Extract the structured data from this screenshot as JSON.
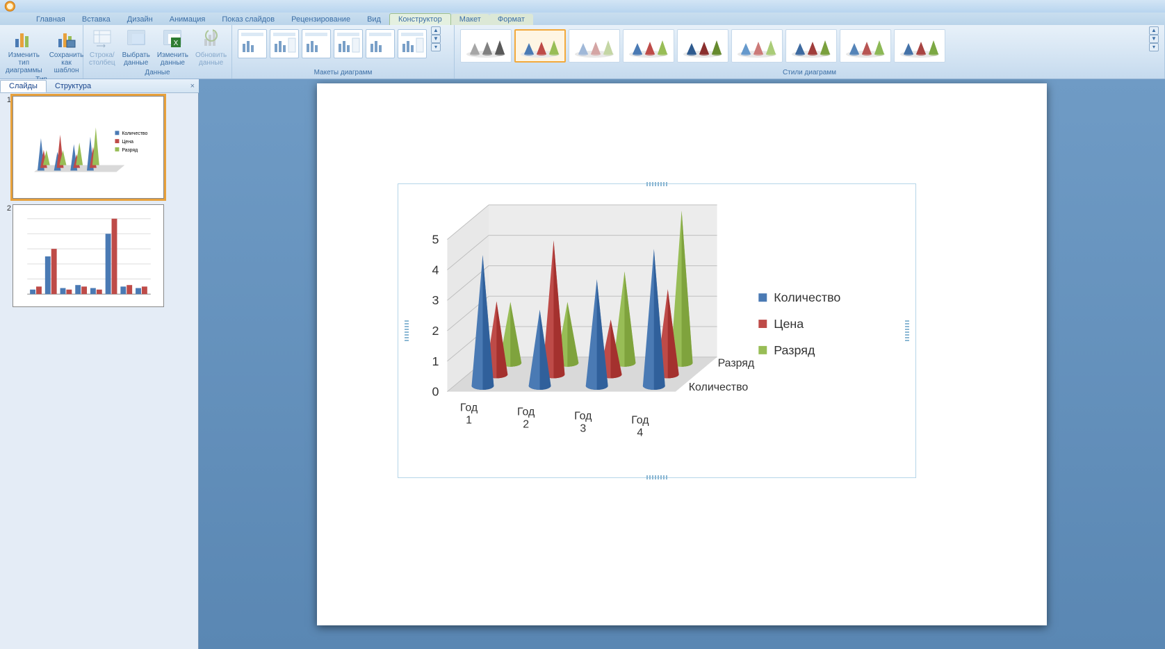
{
  "tabs": {
    "items": [
      "Главная",
      "Вставка",
      "Дизайн",
      "Анимация",
      "Показ слайдов",
      "Рецензирование",
      "Вид",
      "Конструктор",
      "Макет",
      "Формат"
    ],
    "active_index": 7,
    "contextual_start": 7
  },
  "ribbon": {
    "type_group": {
      "label": "Тип",
      "change_type_l1": "Изменить тип",
      "change_type_l2": "диаграммы",
      "save_tpl_l1": "Сохранить",
      "save_tpl_l2": "как шаблон"
    },
    "data_group": {
      "label": "Данные",
      "switch": "Строка/столбец",
      "select_l1": "Выбрать",
      "select_l2": "данные",
      "edit_l1": "Изменить",
      "edit_l2": "данные",
      "refresh_l1": "Обновить",
      "refresh_l2": "данные"
    },
    "layout_group": {
      "label": "Макеты диаграмм"
    },
    "style_group": {
      "label": "Стили диаграмм",
      "selected_index": 1
    }
  },
  "panel": {
    "slides_tab": "Слайды",
    "outline_tab": "Структура",
    "active": 0,
    "slide_nums": [
      "1",
      "2"
    ],
    "selected_slide": 0
  },
  "chart": {
    "type": "3d-cone",
    "categories": [
      "Год 1",
      "Год 2",
      "Год 3",
      "Год 4"
    ],
    "series": [
      {
        "name": "Количество",
        "color": "#4a7ab4",
        "values": [
          4.3,
          2.5,
          3.5,
          4.5
        ]
      },
      {
        "name": "Цена",
        "color": "#be4b48",
        "values": [
          2.4,
          4.4,
          1.8,
          2.8
        ]
      },
      {
        "name": "Разряд",
        "color": "#98bd56",
        "values": [
          2.0,
          2.0,
          3.0,
          5.0
        ]
      }
    ],
    "depth_labels": [
      "Количество",
      "Разряд"
    ],
    "y_ticks": [
      0,
      1,
      2,
      3,
      4,
      5
    ],
    "ylim": [
      0,
      5
    ],
    "legend_marker_size": 12,
    "background": "#ffffff",
    "wall_color": "#d9d9d9",
    "floor_color": "#bfbfbf",
    "grid_color": "#bfbfbf",
    "axis_fontsize": 18,
    "cat_fontsize": 16
  },
  "style_colors": [
    [
      "#a6a6a6",
      "#808080",
      "#595959"
    ],
    [
      "#4a7ab4",
      "#be4b48",
      "#98bd56"
    ],
    [
      "#a0b8d8",
      "#d4a5a4",
      "#c4d6a4"
    ],
    [
      "#4a7ab4",
      "#be4b48",
      "#98bd56"
    ],
    [
      "#2e5a8e",
      "#8a2f2d",
      "#668a2e"
    ],
    [
      "#6699cc",
      "#cc7a78",
      "#aacc78"
    ],
    [
      "#3d6aa0",
      "#a03d3b",
      "#7aa03d"
    ],
    [
      "#5584b8",
      "#b85553",
      "#8cb855"
    ],
    [
      "#4472a8",
      "#a84442",
      "#7ca844"
    ]
  ]
}
